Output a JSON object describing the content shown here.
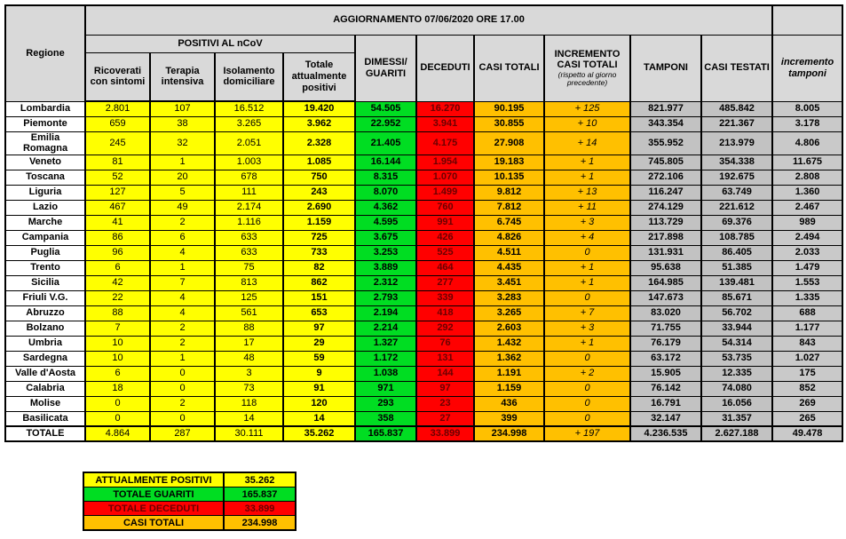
{
  "title": "AGGIORNAMENTO 07/06/2020 ORE 17.00",
  "palette": {
    "yellow": "#FFFF00",
    "green": "#00DD22",
    "red": "#FF0000",
    "orange": "#FFC000",
    "hdr-gray": "#D9D9D9",
    "tamp-gray": "#C2C2C2",
    "itamp-hdr": "#DCDCDC",
    "itamp-cell": "#C9C9C9",
    "corner": "#E6E6E6",
    "dec-text": "#6B0000"
  },
  "header": {
    "regione": "Regione",
    "positivi_group": "POSITIVI AL nCoV",
    "ricoverati": "Ricoverati con sintomi",
    "terapia": "Terapia intensiva",
    "isolamento": "Isolamento domiciliare",
    "totale_positivi": "Totale attualmente positivi",
    "dimessi": "DIMESSI/ GUARITI",
    "deceduti": "DECEDUTI",
    "casi_totali": "CASI TOTALI",
    "incremento_casi": "INCREMENTO CASI  TOTALI",
    "incremento_casi_note": "(rispetto al giorno precedente)",
    "tamponi": "TAMPONI",
    "casi_testati": "CASI TESTATI",
    "incremento_tamponi": "incremento tamponi"
  },
  "rows": [
    [
      "Lombardia",
      "2.801",
      "107",
      "16.512",
      "19.420",
      "54.505",
      "16.270",
      "90.195",
      "+ 125",
      "821.977",
      "485.842",
      "8.005"
    ],
    [
      "Piemonte",
      "659",
      "38",
      "3.265",
      "3.962",
      "22.952",
      "3.941",
      "30.855",
      "+ 10",
      "343.354",
      "221.367",
      "3.178"
    ],
    [
      "Emilia Romagna",
      "245",
      "32",
      "2.051",
      "2.328",
      "21.405",
      "4.175",
      "27.908",
      "+ 14",
      "355.952",
      "213.979",
      "4.806"
    ],
    [
      "Veneto",
      "81",
      "1",
      "1.003",
      "1.085",
      "16.144",
      "1.954",
      "19.183",
      "+ 1",
      "745.805",
      "354.338",
      "11.675"
    ],
    [
      "Toscana",
      "52",
      "20",
      "678",
      "750",
      "8.315",
      "1.070",
      "10.135",
      "+ 1",
      "272.106",
      "192.675",
      "2.808"
    ],
    [
      "Liguria",
      "127",
      "5",
      "111",
      "243",
      "8.070",
      "1.499",
      "9.812",
      "+ 13",
      "116.247",
      "63.749",
      "1.360"
    ],
    [
      "Lazio",
      "467",
      "49",
      "2.174",
      "2.690",
      "4.362",
      "760",
      "7.812",
      "+ 11",
      "274.129",
      "221.612",
      "2.467"
    ],
    [
      "Marche",
      "41",
      "2",
      "1.116",
      "1.159",
      "4.595",
      "991",
      "6.745",
      "+ 3",
      "113.729",
      "69.376",
      "989"
    ],
    [
      "Campania",
      "86",
      "6",
      "633",
      "725",
      "3.675",
      "426",
      "4.826",
      "+ 4",
      "217.898",
      "108.785",
      "2.494"
    ],
    [
      "Puglia",
      "96",
      "4",
      "633",
      "733",
      "3.253",
      "525",
      "4.511",
      "0",
      "131.931",
      "86.405",
      "2.033"
    ],
    [
      "Trento",
      "6",
      "1",
      "75",
      "82",
      "3.889",
      "464",
      "4.435",
      "+ 1",
      "95.638",
      "51.385",
      "1.479"
    ],
    [
      "Sicilia",
      "42",
      "7",
      "813",
      "862",
      "2.312",
      "277",
      "3.451",
      "+ 1",
      "164.985",
      "139.481",
      "1.553"
    ],
    [
      "Friuli V.G.",
      "22",
      "4",
      "125",
      "151",
      "2.793",
      "339",
      "3.283",
      "0",
      "147.673",
      "85.671",
      "1.335"
    ],
    [
      "Abruzzo",
      "88",
      "4",
      "561",
      "653",
      "2.194",
      "418",
      "3.265",
      "+ 7",
      "83.020",
      "56.702",
      "688"
    ],
    [
      "Bolzano",
      "7",
      "2",
      "88",
      "97",
      "2.214",
      "292",
      "2.603",
      "+ 3",
      "71.755",
      "33.944",
      "1.177"
    ],
    [
      "Umbria",
      "10",
      "2",
      "17",
      "29",
      "1.327",
      "76",
      "1.432",
      "+ 1",
      "76.179",
      "54.314",
      "843"
    ],
    [
      "Sardegna",
      "10",
      "1",
      "48",
      "59",
      "1.172",
      "131",
      "1.362",
      "0",
      "63.172",
      "53.735",
      "1.027"
    ],
    [
      "Valle d'Aosta",
      "6",
      "0",
      "3",
      "9",
      "1.038",
      "144",
      "1.191",
      "+ 2",
      "15.905",
      "12.335",
      "175"
    ],
    [
      "Calabria",
      "18",
      "0",
      "73",
      "91",
      "971",
      "97",
      "1.159",
      "0",
      "76.142",
      "74.080",
      "852"
    ],
    [
      "Molise",
      "0",
      "2",
      "118",
      "120",
      "293",
      "23",
      "436",
      "0",
      "16.791",
      "16.056",
      "269"
    ],
    [
      "Basilicata",
      "0",
      "0",
      "14",
      "14",
      "358",
      "27",
      "399",
      "0",
      "32.147",
      "31.357",
      "265"
    ]
  ],
  "totale_row": [
    "TOTALE",
    "4.864",
    "287",
    "30.111",
    "35.262",
    "165.837",
    "33.899",
    "234.998",
    "+ 197",
    "4.236.535",
    "2.627.188",
    "49.478"
  ],
  "legend": {
    "items": [
      {
        "label": "ATTUALMENTE POSITIVI",
        "value": "35.262",
        "color": "#FFFF00"
      },
      {
        "label": "TOTALE GUARITI",
        "value": "165.837",
        "color": "#00DD22"
      },
      {
        "label": "TOTALE DECEDUTI",
        "value": "33.899",
        "color": "#FF0000"
      },
      {
        "label": "CASI TOTALI",
        "value": "234.998",
        "color": "#FFC000"
      }
    ]
  }
}
